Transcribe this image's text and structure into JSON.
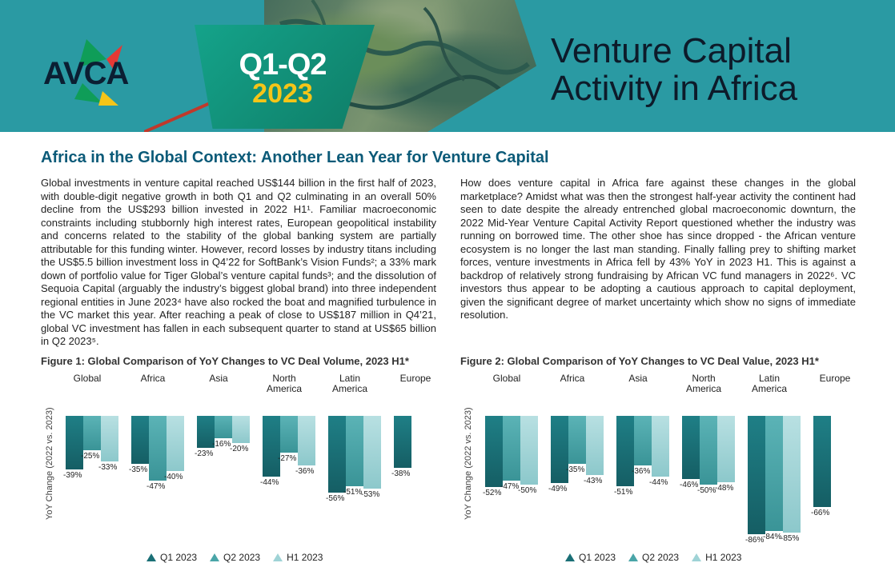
{
  "brand": {
    "logo_text": "AVCA",
    "period": "Q1-Q2",
    "year": "2023",
    "title_line1": "Venture Capital",
    "title_line2": "Activity in Africa"
  },
  "colors": {
    "q1": "#1a6f76",
    "q2": "#4aa5a8",
    "h1": "#9fd3d6"
  },
  "section": {
    "heading": "Africa in the Global Context: Another Lean Year for Venture Capital",
    "left_text": "Global investments in venture capital reached US$144 billion in the first half of 2023, with double-digit negative growth in both Q1 and Q2 culminating in an overall 50% decline from the US$293 billion invested in 2022 H1¹. Familiar macroeconomic constraints including stubbornly high interest rates, European geopolitical instability and concerns related to the stability of the global banking system are partially attributable for this funding winter. However, record losses by industry titans including the US$5.5 billion investment loss in Q4’22 for SoftBank’s Vision Funds²; a 33% mark down of portfolio value for Tiger Global’s venture capital funds³; and the dissolution of Sequoia Capital (arguably the industry’s biggest global brand) into three independent regional entities in June 2023⁴ have also rocked the boat and magnified turbulence in the VC market this year. After reaching a peak of close to US$187 million in Q4’21, global VC investment has fallen in each subsequent quarter to stand at US$65 billion in Q2 2023⁵.",
    "right_text": "How does venture capital in Africa fare against these changes in the global marketplace? Amidst what was then the strongest half-year activity the continent had seen to date despite the already entrenched global macroeconomic downturn, the 2022 Mid-Year Venture Capital Activity Report questioned whether the industry was running on borrowed time. The other shoe has since dropped - the African venture ecosystem is no longer the last man standing. Finally falling prey to shifting market forces, venture investments in Africa fell by 43% YoY in 2023 H1. This is against a backdrop of relatively strong fundraising by African VC fund managers in 2022⁶. VC investors thus appear to be adopting a cautious approach to capital deployment, given the significant degree of market uncertainty which show no signs of immediate resolution."
  },
  "chart_data": [
    {
      "type": "bar",
      "title": "Figure 1: Global Comparison of YoY Changes to VC Deal Volume, 2023 H1*",
      "ylabel": "YoY Change (2022 vs. 2023)",
      "categories": [
        "Global",
        "Africa",
        "Asia",
        "North America",
        "Latin America",
        "Europe"
      ],
      "series": [
        {
          "name": "Q1 2023",
          "values": [
            -39,
            -35,
            -23,
            -44,
            -56,
            -38
          ]
        },
        {
          "name": "Q2 2023",
          "values": [
            -25,
            -47,
            -16,
            -27,
            -51,
            null
          ]
        },
        {
          "name": "H1 2023",
          "values": [
            -33,
            -40,
            -20,
            -36,
            -53,
            null
          ]
        }
      ]
    },
    {
      "type": "bar",
      "title": "Figure 2: Global Comparison of YoY Changes to VC Deal Value, 2023 H1*",
      "ylabel": "YoY Change (2022 vs. 2023)",
      "categories": [
        "Global",
        "Africa",
        "Asia",
        "North America",
        "Latin America",
        "Europe"
      ],
      "series": [
        {
          "name": "Q1 2023",
          "values": [
            -52,
            -49,
            -51,
            -46,
            -86,
            -66
          ]
        },
        {
          "name": "Q2 2023",
          "values": [
            -47,
            -35,
            -36,
            -50,
            -84,
            null
          ]
        },
        {
          "name": "H1 2023",
          "values": [
            -50,
            -43,
            -44,
            -48,
            -85,
            null
          ]
        }
      ]
    }
  ]
}
